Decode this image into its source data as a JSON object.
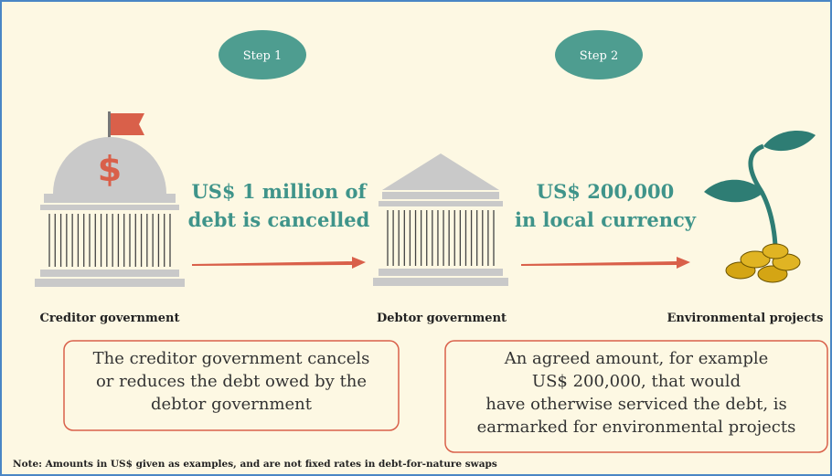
{
  "steps": [
    "Step 1",
    "Step 2"
  ],
  "icon_symbol": "$",
  "nodes": [
    {
      "label": "Creditor government"
    },
    {
      "label": "Debtor government"
    },
    {
      "label": "Environmental projects"
    }
  ],
  "flows": [
    {
      "lines": [
        "US$ 1 million of",
        "debt is cancelled"
      ]
    },
    {
      "lines": [
        "US$ 200,000",
        "in local currency"
      ]
    }
  ],
  "descriptions": [
    {
      "lines": [
        "The creditor government cancels",
        "or reduces the debt owed by the",
        "debtor government"
      ]
    },
    {
      "lines": [
        "An agreed amount, for example",
        "US$ 200,000, that would",
        "have otherwise serviced the debt, is",
        "earmarked for environmental projects"
      ]
    }
  ],
  "note": "Note: Amounts in US$ given as examples, and are not fixed rates in debt-for-nature swaps"
}
